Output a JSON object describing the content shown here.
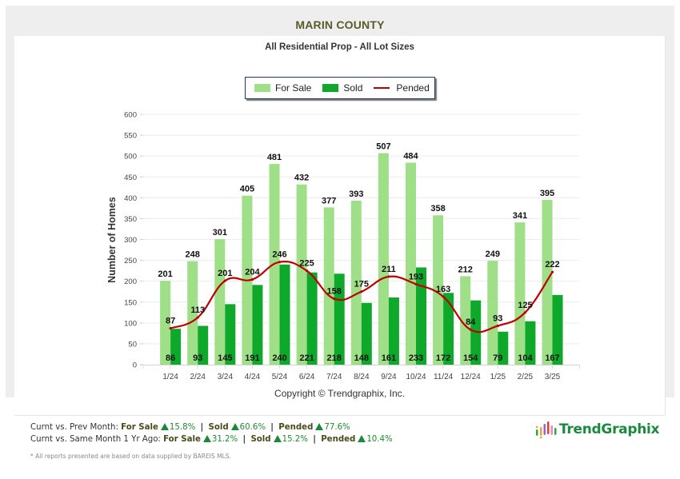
{
  "header": {
    "county_title": "MARIN COUNTY",
    "subtitle": "All Residential Prop - All Lot Sizes"
  },
  "legend": [
    {
      "label": "For Sale",
      "color": "#9fdf87",
      "kind": "bar"
    },
    {
      "label": "Sold",
      "color": "#0ea92a",
      "kind": "bar"
    },
    {
      "label": "Pended",
      "color": "#c00000",
      "kind": "line"
    }
  ],
  "chart_data": {
    "type": "bar",
    "title": "MARIN COUNTY",
    "subtitle": "All Residential Prop - All Lot Sizes",
    "xlabel": "",
    "ylabel": "Number of Homes",
    "ylim": [
      0,
      600
    ],
    "yticks": [
      0,
      50,
      100,
      150,
      200,
      250,
      300,
      350,
      400,
      450,
      500,
      550,
      600
    ],
    "grid": true,
    "legend_position": "top-center",
    "categories": [
      "1/24",
      "2/24",
      "3/24",
      "4/24",
      "5/24",
      "6/24",
      "7/24",
      "8/24",
      "9/24",
      "10/24",
      "11/24",
      "12/24",
      "1/25",
      "2/25",
      "3/25"
    ],
    "series": [
      {
        "name": "For Sale",
        "type": "bar",
        "color": "#9fdf87",
        "values": [
          201,
          248,
          301,
          405,
          481,
          432,
          377,
          393,
          507,
          484,
          358,
          212,
          249,
          341,
          395
        ]
      },
      {
        "name": "Sold",
        "type": "bar",
        "color": "#0ea92a",
        "values": [
          86,
          93,
          145,
          191,
          240,
          221,
          218,
          148,
          161,
          233,
          172,
          154,
          79,
          104,
          167
        ]
      },
      {
        "name": "Pended",
        "type": "line",
        "color": "#c00000",
        "values": [
          87,
          113,
          201,
          204,
          246,
          225,
          158,
          175,
          211,
          193,
          163,
          84,
          93,
          125,
          222
        ]
      }
    ]
  },
  "copyright": "Copyright © Trendgraphix, Inc.",
  "stats": {
    "prev_month": {
      "prefix": "Curnt vs. Prev Month:",
      "for_sale_label": "For Sale",
      "for_sale_pct": "15.8%",
      "sold_label": "Sold",
      "sold_pct": "60.6%",
      "pended_label": "Pended",
      "pended_pct": "77.6%"
    },
    "year_ago": {
      "prefix": "Curnt vs. Same Month 1 Yr Ago:",
      "for_sale_label": "For Sale",
      "for_sale_pct": "31.2%",
      "sold_label": "Sold",
      "sold_pct": "15.2%",
      "pended_label": "Pended",
      "pended_pct": "10.4%"
    },
    "separator": "|",
    "trend_icon": "up-triangle-icon"
  },
  "footnote": "* All reports presented are based on data supplied by BAREIS MLS.",
  "logo": {
    "text": "TrendGraphix",
    "icon": "bar-dots-logo-icon"
  }
}
